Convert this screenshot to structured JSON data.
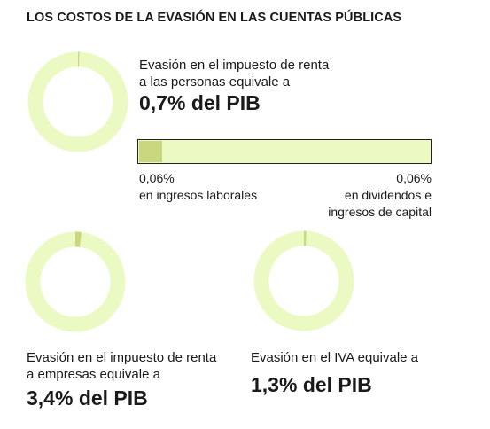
{
  "title": "LOS COSTOS DE LA EVASIÓN EN LAS CUENTAS PÚBLICAS",
  "colors": {
    "ring": "#ebf9c2",
    "accent": "#cbd77f",
    "text": "#1a1a1a"
  },
  "chart_data": [
    {
      "type": "pie",
      "name": "personas",
      "value_percent": 0.7,
      "line1": "Evasión en el impuesto de renta",
      "line2": "a las personas equivale a",
      "value_label": "0,7% del PIB"
    },
    {
      "type": "bar",
      "name": "desglose-personas",
      "segments": [
        {
          "value": 0.06,
          "label_value": "0,06%",
          "label1": "en ingresos laborales",
          "label2": ""
        },
        {
          "value": 0.06,
          "label_value": "0,06%",
          "label1": "en dividendos e",
          "label2": "ingresos de capital"
        }
      ]
    },
    {
      "type": "pie",
      "name": "empresas",
      "value_percent": 3.4,
      "line1": "Evasión en el impuesto de renta",
      "line2": "a empresas equivale a",
      "value_label": "3,4% del PIB"
    },
    {
      "type": "pie",
      "name": "iva",
      "value_percent": 1.3,
      "line1": "Evasión en el IVA equivale a",
      "line2": "",
      "value_label": "1,3% del PIB"
    }
  ]
}
